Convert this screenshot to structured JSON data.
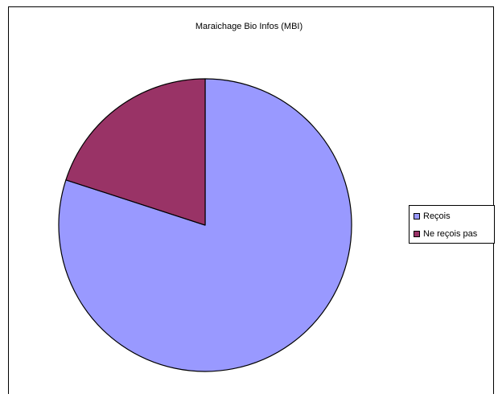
{
  "chart_data": {
    "type": "pie",
    "title": "Maraichage Bio Infos (MBI)",
    "categories": [
      "Reçois",
      "Ne reçois pas"
    ],
    "values": [
      80,
      20
    ],
    "colors": [
      "#9999FF",
      "#993366"
    ],
    "start_angle_deg": 0,
    "direction": "clockwise",
    "legend_position": "right"
  }
}
